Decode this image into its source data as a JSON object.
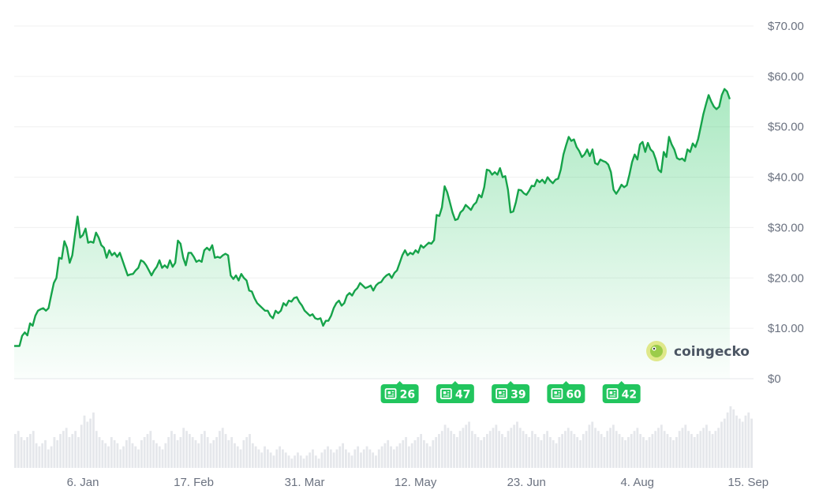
{
  "chart_data": {
    "type": "line",
    "y_ticks": [
      "$70.00",
      "$60.00",
      "$50.00",
      "$40.00",
      "$30.00",
      "$20.00",
      "$10.00",
      "$0"
    ],
    "ylim": [
      0,
      70
    ],
    "x_ticks": [
      "6. Jan",
      "17. Feb",
      "31. Mar",
      "12. May",
      "23. Jun",
      "4. Aug",
      "15. Sep"
    ],
    "x_tick_days": [
      24,
      66,
      108,
      150,
      192,
      234,
      276
    ],
    "xlim_days": [
      -2,
      278
    ],
    "series": [
      {
        "type": "line",
        "color": "#16a34a",
        "points": [
          [
            -2,
            6.5
          ],
          [
            0,
            6.5
          ],
          [
            1,
            8.5
          ],
          [
            2,
            9.2
          ],
          [
            3,
            8.6
          ],
          [
            4,
            11
          ],
          [
            5,
            10.5
          ],
          [
            6,
            12.5
          ],
          [
            7,
            13.5
          ],
          [
            8,
            13.8
          ],
          [
            9,
            14
          ],
          [
            10,
            13.5
          ],
          [
            11,
            14
          ],
          [
            12,
            16.5
          ],
          [
            13,
            19
          ],
          [
            14,
            20
          ],
          [
            15,
            24
          ],
          [
            16,
            23.8
          ],
          [
            17,
            27.3
          ],
          [
            18,
            26
          ],
          [
            19,
            23
          ],
          [
            20,
            24.5
          ],
          [
            21,
            28.5
          ],
          [
            22,
            32.2
          ],
          [
            23,
            28
          ],
          [
            24,
            28.5
          ],
          [
            25,
            29.8
          ],
          [
            26,
            27
          ],
          [
            27,
            27.2
          ],
          [
            28,
            27
          ],
          [
            29,
            29
          ],
          [
            30,
            28
          ],
          [
            31,
            26.5
          ],
          [
            32,
            26
          ],
          [
            33,
            24
          ],
          [
            34,
            25.5
          ],
          [
            35,
            24.5
          ],
          [
            36,
            25
          ],
          [
            37,
            24.2
          ],
          [
            38,
            25
          ],
          [
            39,
            23.5
          ],
          [
            40,
            22
          ],
          [
            41,
            20.5
          ],
          [
            42,
            20.7
          ],
          [
            43,
            20.8
          ],
          [
            44,
            21.5
          ],
          [
            45,
            22
          ],
          [
            46,
            23.5
          ],
          [
            47,
            23.2
          ],
          [
            48,
            22.5
          ],
          [
            49,
            21.5
          ],
          [
            50,
            20.5
          ],
          [
            51,
            21.5
          ],
          [
            52,
            22.2
          ],
          [
            53,
            23.5
          ],
          [
            54,
            22
          ],
          [
            55,
            22.5
          ],
          [
            56,
            22
          ],
          [
            57,
            23.5
          ],
          [
            58,
            22.2
          ],
          [
            59,
            23
          ],
          [
            60,
            27.4
          ],
          [
            61,
            26.8
          ],
          [
            62,
            24
          ],
          [
            63,
            22.5
          ],
          [
            64,
            25
          ],
          [
            65,
            25
          ],
          [
            66,
            24.2
          ],
          [
            67,
            23.2
          ],
          [
            68,
            23.5
          ],
          [
            69,
            23.2
          ],
          [
            70,
            25.5
          ],
          [
            71,
            26
          ],
          [
            72,
            25.5
          ],
          [
            73,
            26.5
          ],
          [
            74,
            24
          ],
          [
            75,
            24.2
          ],
          [
            76,
            24
          ],
          [
            77,
            24.5
          ],
          [
            78,
            24.8
          ],
          [
            79,
            24.5
          ],
          [
            80,
            20.5
          ],
          [
            81,
            19.8
          ],
          [
            82,
            20.5
          ],
          [
            83,
            19.5
          ],
          [
            84,
            20.8
          ],
          [
            85,
            20
          ],
          [
            86,
            19.5
          ],
          [
            87,
            17.5
          ],
          [
            88,
            17.3
          ],
          [
            89,
            16
          ],
          [
            90,
            15
          ],
          [
            91,
            14.5
          ],
          [
            92,
            14
          ],
          [
            93,
            13.5
          ],
          [
            94,
            13.5
          ],
          [
            95,
            12.5
          ],
          [
            96,
            12
          ],
          [
            97,
            13.5
          ],
          [
            98,
            13
          ],
          [
            99,
            13.5
          ],
          [
            100,
            15
          ],
          [
            101,
            14.5
          ],
          [
            102,
            15.5
          ],
          [
            103,
            15.3
          ],
          [
            104,
            16
          ],
          [
            105,
            16.2
          ],
          [
            106,
            15.2
          ],
          [
            107,
            14.5
          ],
          [
            108,
            13.5
          ],
          [
            109,
            13
          ],
          [
            110,
            12.5
          ],
          [
            111,
            12.8
          ],
          [
            112,
            12
          ],
          [
            113,
            11.8
          ],
          [
            114,
            12
          ],
          [
            115,
            10.5
          ],
          [
            116,
            11.5
          ],
          [
            117,
            11.5
          ],
          [
            118,
            12.5
          ],
          [
            119,
            14
          ],
          [
            120,
            15
          ],
          [
            121,
            15.5
          ],
          [
            122,
            14.5
          ],
          [
            123,
            15
          ],
          [
            124,
            16.5
          ],
          [
            125,
            17
          ],
          [
            126,
            16.5
          ],
          [
            127,
            17.5
          ],
          [
            128,
            18
          ],
          [
            129,
            19
          ],
          [
            130,
            18.5
          ],
          [
            131,
            18
          ],
          [
            132,
            18.2
          ],
          [
            133,
            18.5
          ],
          [
            134,
            17.5
          ],
          [
            135,
            18.5
          ],
          [
            136,
            19
          ],
          [
            137,
            19.2
          ],
          [
            138,
            20
          ],
          [
            139,
            20.5
          ],
          [
            140,
            20.8
          ],
          [
            141,
            20
          ],
          [
            142,
            21
          ],
          [
            143,
            21.5
          ],
          [
            144,
            23
          ],
          [
            145,
            24.5
          ],
          [
            146,
            25.5
          ],
          [
            147,
            24.5
          ],
          [
            148,
            25
          ],
          [
            149,
            24.7
          ],
          [
            150,
            25.5
          ],
          [
            151,
            25
          ],
          [
            152,
            26.5
          ],
          [
            153,
            26
          ],
          [
            154,
            26.5
          ],
          [
            155,
            27
          ],
          [
            156,
            26.8
          ],
          [
            157,
            27.5
          ],
          [
            158,
            32.5
          ],
          [
            159,
            32.3
          ],
          [
            160,
            34
          ],
          [
            161,
            38.2
          ],
          [
            162,
            37
          ],
          [
            163,
            35
          ],
          [
            164,
            33
          ],
          [
            165,
            31.5
          ],
          [
            166,
            31.7
          ],
          [
            167,
            33
          ],
          [
            168,
            33.5
          ],
          [
            169,
            34.5
          ],
          [
            170,
            34
          ],
          [
            171,
            33.5
          ],
          [
            172,
            34.5
          ],
          [
            173,
            35
          ],
          [
            174,
            36.5
          ],
          [
            175,
            36
          ],
          [
            176,
            38
          ],
          [
            177,
            41.5
          ],
          [
            178,
            41.3
          ],
          [
            179,
            40.5
          ],
          [
            180,
            41
          ],
          [
            181,
            40.5
          ],
          [
            182,
            41.8
          ],
          [
            183,
            40
          ],
          [
            184,
            40.2
          ],
          [
            185,
            37.5
          ],
          [
            186,
            33
          ],
          [
            187,
            33.2
          ],
          [
            188,
            35
          ],
          [
            189,
            37.5
          ],
          [
            190,
            37.4
          ],
          [
            191,
            36.8
          ],
          [
            192,
            36.5
          ],
          [
            193,
            37.3
          ],
          [
            194,
            38.3
          ],
          [
            195,
            38.2
          ],
          [
            196,
            39.5
          ],
          [
            197,
            39
          ],
          [
            198,
            39.5
          ],
          [
            199,
            38.8
          ],
          [
            200,
            40
          ],
          [
            201,
            39.3
          ],
          [
            202,
            38.8
          ],
          [
            203,
            39.5
          ],
          [
            204,
            39.7
          ],
          [
            205,
            41.5
          ],
          [
            206,
            44.5
          ],
          [
            207,
            46.3
          ],
          [
            208,
            48
          ],
          [
            209,
            47.2
          ],
          [
            210,
            47.5
          ],
          [
            211,
            46
          ],
          [
            212,
            45.2
          ],
          [
            213,
            44
          ],
          [
            214,
            44.5
          ],
          [
            215,
            45.5
          ],
          [
            216,
            44.2
          ],
          [
            217,
            45.5
          ],
          [
            218,
            42.8
          ],
          [
            219,
            42.5
          ],
          [
            220,
            43.5
          ],
          [
            221,
            43.2
          ],
          [
            222,
            43
          ],
          [
            223,
            42.5
          ],
          [
            224,
            41
          ],
          [
            225,
            37.5
          ],
          [
            226,
            36.7
          ],
          [
            227,
            37.5
          ],
          [
            228,
            38.5
          ],
          [
            229,
            38
          ],
          [
            230,
            38.4
          ],
          [
            231,
            40.5
          ],
          [
            232,
            43
          ],
          [
            233,
            44.5
          ],
          [
            234,
            43.5
          ],
          [
            235,
            46.5
          ],
          [
            236,
            47
          ],
          [
            237,
            45
          ],
          [
            238,
            46.8
          ],
          [
            239,
            45.5
          ],
          [
            240,
            45
          ],
          [
            241,
            43.5
          ],
          [
            242,
            41.5
          ],
          [
            243,
            41
          ],
          [
            244,
            45
          ],
          [
            245,
            44
          ],
          [
            246,
            48
          ],
          [
            247,
            46.5
          ],
          [
            248,
            45.5
          ],
          [
            249,
            43.8
          ],
          [
            250,
            43.5
          ],
          [
            251,
            43.7
          ],
          [
            252,
            43.2
          ],
          [
            253,
            45.5
          ],
          [
            254,
            45
          ],
          [
            255,
            46.7
          ],
          [
            256,
            46
          ],
          [
            257,
            47.5
          ],
          [
            258,
            50
          ],
          [
            259,
            52.5
          ],
          [
            260,
            54.5
          ],
          [
            261,
            56.3
          ],
          [
            262,
            55
          ],
          [
            263,
            54
          ],
          [
            264,
            53.5
          ],
          [
            265,
            54
          ],
          [
            266,
            56.3
          ],
          [
            267,
            57.5
          ],
          [
            268,
            57
          ],
          [
            269,
            55.5
          ]
        ]
      }
    ],
    "volume_bars_relative": [
      0.55,
      0.6,
      0.5,
      0.45,
      0.5,
      0.55,
      0.6,
      0.4,
      0.35,
      0.4,
      0.45,
      0.3,
      0.35,
      0.5,
      0.45,
      0.55,
      0.6,
      0.65,
      0.5,
      0.55,
      0.6,
      0.5,
      0.7,
      0.85,
      0.75,
      0.8,
      0.9,
      0.6,
      0.5,
      0.45,
      0.4,
      0.35,
      0.5,
      0.45,
      0.4,
      0.3,
      0.35,
      0.45,
      0.5,
      0.4,
      0.35,
      0.3,
      0.45,
      0.5,
      0.55,
      0.6,
      0.45,
      0.4,
      0.35,
      0.3,
      0.4,
      0.5,
      0.6,
      0.55,
      0.45,
      0.5,
      0.65,
      0.6,
      0.55,
      0.5,
      0.45,
      0.4,
      0.55,
      0.6,
      0.5,
      0.4,
      0.45,
      0.5,
      0.6,
      0.65,
      0.55,
      0.45,
      0.5,
      0.4,
      0.35,
      0.3,
      0.45,
      0.5,
      0.55,
      0.4,
      0.35,
      0.3,
      0.25,
      0.35,
      0.3,
      0.25,
      0.2,
      0.3,
      0.35,
      0.3,
      0.25,
      0.2,
      0.15,
      0.2,
      0.25,
      0.2,
      0.15,
      0.2,
      0.25,
      0.3,
      0.2,
      0.15,
      0.25,
      0.3,
      0.35,
      0.3,
      0.25,
      0.3,
      0.35,
      0.4,
      0.3,
      0.25,
      0.2,
      0.3,
      0.35,
      0.25,
      0.3,
      0.35,
      0.3,
      0.25,
      0.2,
      0.3,
      0.35,
      0.4,
      0.45,
      0.35,
      0.3,
      0.35,
      0.4,
      0.45,
      0.5,
      0.35,
      0.4,
      0.45,
      0.5,
      0.55,
      0.45,
      0.4,
      0.35,
      0.45,
      0.5,
      0.55,
      0.6,
      0.7,
      0.65,
      0.6,
      0.55,
      0.5,
      0.6,
      0.65,
      0.7,
      0.75,
      0.6,
      0.55,
      0.5,
      0.45,
      0.5,
      0.55,
      0.6,
      0.65,
      0.7,
      0.6,
      0.55,
      0.5,
      0.6,
      0.65,
      0.7,
      0.75,
      0.65,
      0.6,
      0.55,
      0.5,
      0.6,
      0.55,
      0.5,
      0.45,
      0.55,
      0.6,
      0.5,
      0.45,
      0.4,
      0.5,
      0.55,
      0.6,
      0.65,
      0.6,
      0.55,
      0.5,
      0.45,
      0.55,
      0.6,
      0.7,
      0.75,
      0.65,
      0.6,
      0.55,
      0.5,
      0.6,
      0.65,
      0.7,
      0.6,
      0.55,
      0.5,
      0.45,
      0.5,
      0.55,
      0.6,
      0.65,
      0.55,
      0.5,
      0.45,
      0.5,
      0.55,
      0.6,
      0.65,
      0.7,
      0.6,
      0.55,
      0.5,
      0.45,
      0.5,
      0.6,
      0.65,
      0.7,
      0.6,
      0.55,
      0.5,
      0.55,
      0.6,
      0.65,
      0.7,
      0.6,
      0.55,
      0.6,
      0.65,
      0.75,
      0.8,
      0.9,
      1.0,
      0.95,
      0.85,
      0.8,
      0.75,
      0.85,
      0.9,
      0.8
    ],
    "news_badges": [
      {
        "label": "26",
        "day": 144
      },
      {
        "label": "47",
        "day": 165
      },
      {
        "label": "39",
        "day": 186
      },
      {
        "label": "60",
        "day": 207
      },
      {
        "label": "42",
        "day": 228
      }
    ],
    "grid": true,
    "legend": "none"
  },
  "logo": {
    "text": "coingecko",
    "icon": "gecko-icon"
  },
  "colors": {
    "line": "#16a34a",
    "fill_top": "#22c55e",
    "badge": "#22c55e",
    "grid": "#eeeeee",
    "volume": "#e5e7eb",
    "axis_text": "#6b7280"
  }
}
